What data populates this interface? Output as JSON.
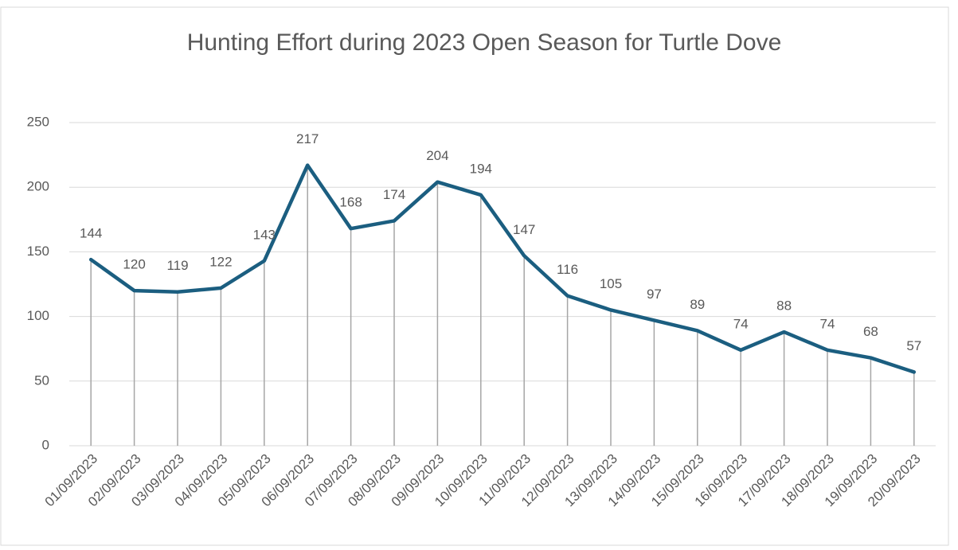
{
  "chart_data": {
    "type": "line",
    "title": "Hunting Effort during 2023 Open Season for Turtle Dove",
    "categories": [
      "01/09/2023",
      "02/09/2023",
      "03/09/2023",
      "04/09/2023",
      "05/09/2023",
      "06/09/2023",
      "07/09/2023",
      "08/09/2023",
      "09/09/2023",
      "10/09/2023",
      "11/09/2023",
      "12/09/2023",
      "13/09/2023",
      "14/09/2023",
      "15/09/2023",
      "16/09/2023",
      "17/09/2023",
      "18/09/2023",
      "19/09/2023",
      "20/09/2023"
    ],
    "series": [
      {
        "name": "Hunting Effort",
        "color": "#1b5e80",
        "values": [
          144,
          120,
          119,
          122,
          143,
          217,
          168,
          174,
          204,
          194,
          147,
          116,
          105,
          97,
          89,
          74,
          88,
          74,
          68,
          57
        ]
      }
    ],
    "ylim": [
      0,
      250
    ],
    "yticks": [
      0,
      50,
      100,
      150,
      200,
      250
    ],
    "grid": true,
    "drop_lines": true
  }
}
